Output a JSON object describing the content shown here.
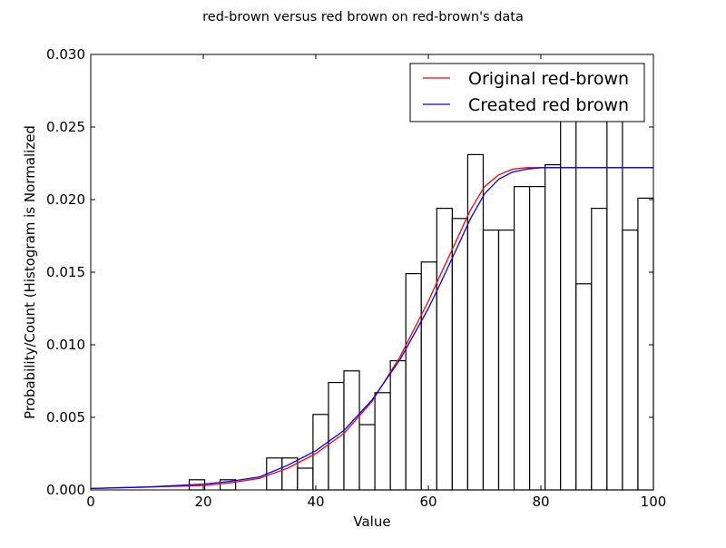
{
  "chart_data": {
    "type": "bar",
    "title": "red-brown versus red brown on red-brown's data",
    "xlabel": "Value",
    "ylabel": "Probability/Count (Histogram is Normalized",
    "xlim": [
      0,
      100
    ],
    "ylim": [
      0,
      0.03
    ],
    "x_ticks": [
      "0",
      "20",
      "40",
      "60",
      "80",
      "100"
    ],
    "y_ticks": [
      "0.000",
      "0.005",
      "0.010",
      "0.015",
      "0.020",
      "0.025",
      "0.030"
    ],
    "grid": false,
    "legend_position": "top-right",
    "histogram": {
      "bin_width": 2.75,
      "bins": [
        {
          "x0": 17.5,
          "x1": 20.25,
          "value": 0.0007
        },
        {
          "x0": 23.0,
          "x1": 25.75,
          "value": 0.0007
        },
        {
          "x0": 31.25,
          "x1": 34.0,
          "value": 0.0022
        },
        {
          "x0": 34.0,
          "x1": 36.75,
          "value": 0.0022
        },
        {
          "x0": 36.75,
          "x1": 39.5,
          "value": 0.0015
        },
        {
          "x0": 39.5,
          "x1": 42.25,
          "value": 0.0052
        },
        {
          "x0": 42.25,
          "x1": 45.0,
          "value": 0.0074
        },
        {
          "x0": 45.0,
          "x1": 47.75,
          "value": 0.0082
        },
        {
          "x0": 47.75,
          "x1": 50.5,
          "value": 0.0045
        },
        {
          "x0": 50.5,
          "x1": 53.25,
          "value": 0.0067
        },
        {
          "x0": 53.25,
          "x1": 56.0,
          "value": 0.0089
        },
        {
          "x0": 56.0,
          "x1": 58.75,
          "value": 0.0149
        },
        {
          "x0": 58.75,
          "x1": 61.5,
          "value": 0.0157
        },
        {
          "x0": 61.5,
          "x1": 64.25,
          "value": 0.0194
        },
        {
          "x0": 64.25,
          "x1": 67.0,
          "value": 0.0187
        },
        {
          "x0": 67.0,
          "x1": 69.75,
          "value": 0.0231
        },
        {
          "x0": 69.75,
          "x1": 72.5,
          "value": 0.0179
        },
        {
          "x0": 72.5,
          "x1": 75.25,
          "value": 0.0179
        },
        {
          "x0": 75.25,
          "x1": 78.0,
          "value": 0.0209
        },
        {
          "x0": 78.0,
          "x1": 80.75,
          "value": 0.0209
        },
        {
          "x0": 80.75,
          "x1": 83.5,
          "value": 0.0224
        },
        {
          "x0": 83.5,
          "x1": 86.25,
          "value": 0.0261
        },
        {
          "x0": 86.25,
          "x1": 89.0,
          "value": 0.0142
        },
        {
          "x0": 89.0,
          "x1": 91.75,
          "value": 0.0194
        },
        {
          "x0": 91.75,
          "x1": 94.5,
          "value": 0.0261
        },
        {
          "x0": 94.5,
          "x1": 97.25,
          "value": 0.0179
        },
        {
          "x0": 97.25,
          "x1": 100.0,
          "value": 0.0201
        }
      ]
    },
    "series": [
      {
        "name": "Original red-brown",
        "color": "#ff0000",
        "type": "line",
        "points": [
          [
            0,
            0.0001
          ],
          [
            10,
            0.0002
          ],
          [
            20,
            0.0003
          ],
          [
            25,
            0.0005
          ],
          [
            30,
            0.0008
          ],
          [
            35,
            0.0015
          ],
          [
            40,
            0.0025
          ],
          [
            45,
            0.0039
          ],
          [
            50,
            0.0061
          ],
          [
            55,
            0.0092
          ],
          [
            60,
            0.013
          ],
          [
            62,
            0.0147
          ],
          [
            65,
            0.0172
          ],
          [
            67.5,
            0.0193
          ],
          [
            70,
            0.0209
          ],
          [
            72.5,
            0.0217
          ],
          [
            75,
            0.0221
          ],
          [
            77.5,
            0.0222
          ],
          [
            80,
            0.0222
          ],
          [
            90,
            0.0222
          ],
          [
            100,
            0.0222
          ]
        ]
      },
      {
        "name": "Created red brown",
        "color": "#0000ff",
        "type": "line",
        "points": [
          [
            0,
            0.0001
          ],
          [
            10,
            0.0002
          ],
          [
            20,
            0.0004
          ],
          [
            25,
            0.0006
          ],
          [
            30,
            0.0009
          ],
          [
            35,
            0.0017
          ],
          [
            40,
            0.0027
          ],
          [
            45,
            0.0041
          ],
          [
            50,
            0.0062
          ],
          [
            55,
            0.009
          ],
          [
            60,
            0.0125
          ],
          [
            62,
            0.0141
          ],
          [
            65,
            0.0166
          ],
          [
            67.5,
            0.0187
          ],
          [
            70,
            0.0204
          ],
          [
            72.5,
            0.0214
          ],
          [
            75,
            0.0219
          ],
          [
            77.5,
            0.0221
          ],
          [
            80,
            0.0222
          ],
          [
            90,
            0.0222
          ],
          [
            100,
            0.0222
          ]
        ]
      }
    ]
  }
}
